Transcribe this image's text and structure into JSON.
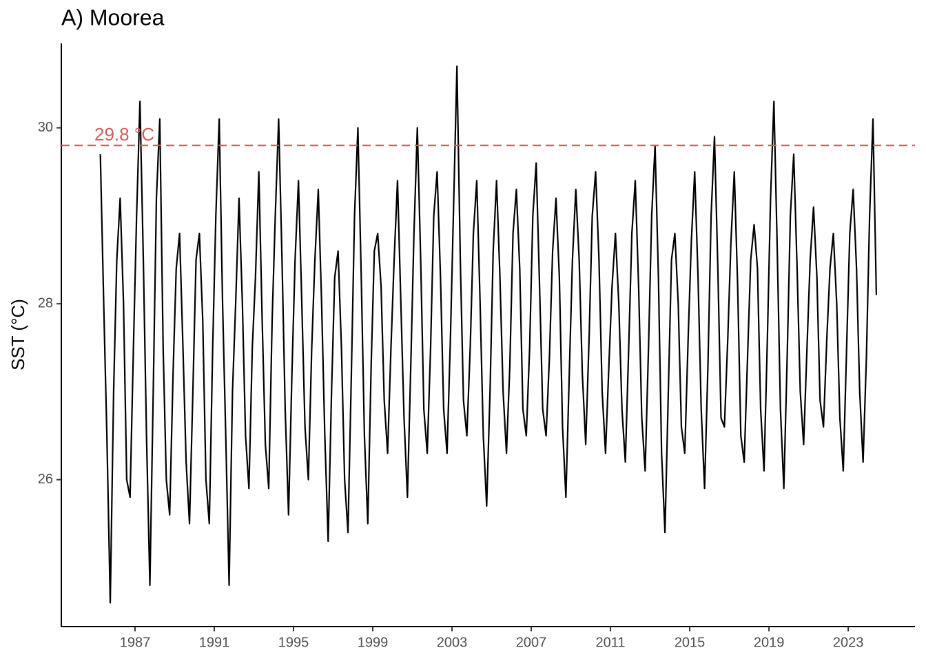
{
  "chart_data": {
    "type": "line",
    "title": "A) Moorea",
    "y_label": "SST (°C)",
    "xlim": [
      1983.28,
      2026.37
    ],
    "ylim": [
      24.33,
      30.96
    ],
    "xticks": [
      1987,
      1991,
      1995,
      1999,
      2003,
      2007,
      2011,
      2015,
      2019,
      2023
    ],
    "yticks": [
      26,
      28,
      30
    ],
    "threshold": {
      "value": 29.8,
      "label": "29.8 °C",
      "color": "#cd5c5c"
    },
    "series": [
      {
        "name": "SST",
        "color": "#000000",
        "x": [
          1985.25,
          1985.42,
          1985.58,
          1985.75,
          1985.92,
          1986.08,
          1986.25,
          1986.42,
          1986.58,
          1986.75,
          1986.92,
          1987.08,
          1987.25,
          1987.42,
          1987.58,
          1987.75,
          1987.92,
          1988.08,
          1988.25,
          1988.42,
          1988.58,
          1988.75,
          1988.92,
          1989.08,
          1989.25,
          1989.42,
          1989.58,
          1989.75,
          1989.92,
          1990.08,
          1990.25,
          1990.42,
          1990.58,
          1990.75,
          1990.92,
          1991.08,
          1991.25,
          1991.42,
          1991.58,
          1991.75,
          1991.92,
          1992.08,
          1992.25,
          1992.42,
          1992.58,
          1992.75,
          1992.92,
          1993.08,
          1993.25,
          1993.42,
          1993.58,
          1993.75,
          1993.92,
          1994.08,
          1994.25,
          1994.42,
          1994.58,
          1994.75,
          1994.92,
          1995.08,
          1995.25,
          1995.42,
          1995.58,
          1995.75,
          1995.92,
          1996.08,
          1996.25,
          1996.42,
          1996.58,
          1996.75,
          1996.92,
          1997.08,
          1997.25,
          1997.42,
          1997.58,
          1997.75,
          1997.92,
          1998.08,
          1998.25,
          1998.42,
          1998.58,
          1998.75,
          1998.92,
          1999.08,
          1999.25,
          1999.42,
          1999.58,
          1999.75,
          1999.92,
          2000.08,
          2000.25,
          2000.42,
          2000.58,
          2000.75,
          2000.92,
          2001.08,
          2001.25,
          2001.42,
          2001.58,
          2001.75,
          2001.92,
          2002.08,
          2002.25,
          2002.42,
          2002.58,
          2002.75,
          2002.92,
          2003.08,
          2003.25,
          2003.42,
          2003.58,
          2003.75,
          2003.92,
          2004.08,
          2004.25,
          2004.42,
          2004.58,
          2004.75,
          2004.92,
          2005.08,
          2005.25,
          2005.42,
          2005.58,
          2005.75,
          2005.92,
          2006.08,
          2006.25,
          2006.42,
          2006.58,
          2006.75,
          2006.92,
          2007.08,
          2007.25,
          2007.42,
          2007.58,
          2007.75,
          2007.92,
          2008.08,
          2008.25,
          2008.42,
          2008.58,
          2008.75,
          2008.92,
          2009.08,
          2009.25,
          2009.42,
          2009.58,
          2009.75,
          2009.92,
          2010.08,
          2010.25,
          2010.42,
          2010.58,
          2010.75,
          2010.92,
          2011.08,
          2011.25,
          2011.42,
          2011.58,
          2011.75,
          2011.92,
          2012.08,
          2012.25,
          2012.42,
          2012.58,
          2012.75,
          2012.92,
          2013.08,
          2013.25,
          2013.42,
          2013.58,
          2013.75,
          2013.92,
          2014.08,
          2014.25,
          2014.42,
          2014.58,
          2014.75,
          2014.92,
          2015.08,
          2015.25,
          2015.42,
          2015.58,
          2015.75,
          2015.92,
          2016.08,
          2016.25,
          2016.42,
          2016.58,
          2016.75,
          2016.92,
          2017.08,
          2017.25,
          2017.42,
          2017.58,
          2017.75,
          2017.92,
          2018.08,
          2018.25,
          2018.42,
          2018.58,
          2018.75,
          2018.92,
          2019.08,
          2019.25,
          2019.42,
          2019.58,
          2019.75,
          2019.92,
          2020.08,
          2020.25,
          2020.42,
          2020.58,
          2020.75,
          2020.92,
          2021.08,
          2021.25,
          2021.42,
          2021.58,
          2021.75,
          2021.92,
          2022.08,
          2022.25,
          2022.42,
          2022.58,
          2022.75,
          2022.92,
          2023.08,
          2023.25,
          2023.42,
          2023.58,
          2023.75,
          2023.92,
          2024.08,
          2024.25,
          2024.42
        ],
        "values": [
          29.7,
          28.0,
          26.5,
          24.6,
          27.0,
          28.5,
          29.2,
          28.0,
          26.0,
          25.8,
          27.5,
          29.0,
          30.3,
          28.5,
          26.5,
          24.8,
          27.0,
          29.2,
          30.1,
          27.5,
          26.0,
          25.6,
          27.2,
          28.4,
          28.8,
          27.5,
          26.2,
          25.5,
          27.0,
          28.5,
          28.8,
          27.8,
          26.0,
          25.5,
          27.5,
          29.0,
          30.1,
          28.0,
          26.5,
          24.8,
          27.0,
          28.0,
          29.2,
          28.0,
          26.5,
          25.9,
          27.5,
          28.3,
          29.5,
          27.8,
          26.4,
          25.9,
          27.8,
          29.0,
          30.1,
          28.5,
          26.8,
          25.6,
          27.2,
          28.5,
          29.4,
          28.0,
          26.6,
          26.0,
          27.5,
          28.5,
          29.3,
          28.0,
          26.5,
          25.3,
          27.0,
          28.3,
          28.6,
          27.5,
          26.0,
          25.4,
          27.2,
          29.0,
          30.0,
          28.3,
          26.5,
          25.5,
          27.3,
          28.6,
          28.8,
          28.2,
          26.9,
          26.3,
          27.5,
          28.5,
          29.4,
          28.0,
          26.7,
          25.8,
          27.3,
          28.8,
          30.0,
          28.5,
          26.8,
          26.3,
          27.5,
          29.0,
          29.5,
          28.3,
          26.8,
          26.3,
          27.6,
          29.1,
          30.7,
          28.5,
          26.9,
          26.5,
          27.5,
          28.8,
          29.4,
          28.0,
          26.5,
          25.7,
          27.0,
          28.6,
          29.4,
          28.3,
          27.0,
          26.3,
          27.3,
          28.8,
          29.3,
          28.4,
          26.8,
          26.5,
          27.5,
          29.0,
          29.6,
          28.2,
          26.8,
          26.5,
          27.4,
          28.6,
          29.2,
          28.3,
          26.6,
          25.8,
          27.2,
          28.5,
          29.3,
          28.5,
          27.2,
          26.4,
          27.6,
          29.0,
          29.5,
          28.5,
          27.0,
          26.3,
          27.3,
          28.2,
          28.8,
          28.0,
          26.8,
          26.2,
          27.5,
          28.8,
          29.4,
          28.2,
          26.7,
          26.1,
          27.5,
          29.0,
          29.8,
          28.3,
          26.3,
          25.4,
          27.0,
          28.5,
          28.8,
          28.0,
          26.6,
          26.3,
          27.6,
          28.7,
          29.5,
          28.3,
          26.8,
          25.9,
          27.3,
          29.0,
          29.9,
          28.4,
          26.7,
          26.6,
          27.6,
          28.7,
          29.5,
          28.2,
          26.5,
          26.2,
          27.4,
          28.5,
          28.9,
          28.4,
          26.8,
          26.1,
          27.6,
          29.2,
          30.3,
          28.6,
          26.8,
          25.9,
          27.4,
          29.0,
          29.7,
          28.4,
          27.0,
          26.4,
          27.5,
          28.5,
          29.1,
          28.3,
          26.9,
          26.6,
          27.6,
          28.4,
          28.8,
          28.0,
          26.7,
          26.1,
          27.5,
          28.8,
          29.3,
          28.4,
          27.0,
          26.2,
          27.4,
          29.0,
          30.1,
          28.1
        ]
      }
    ]
  }
}
